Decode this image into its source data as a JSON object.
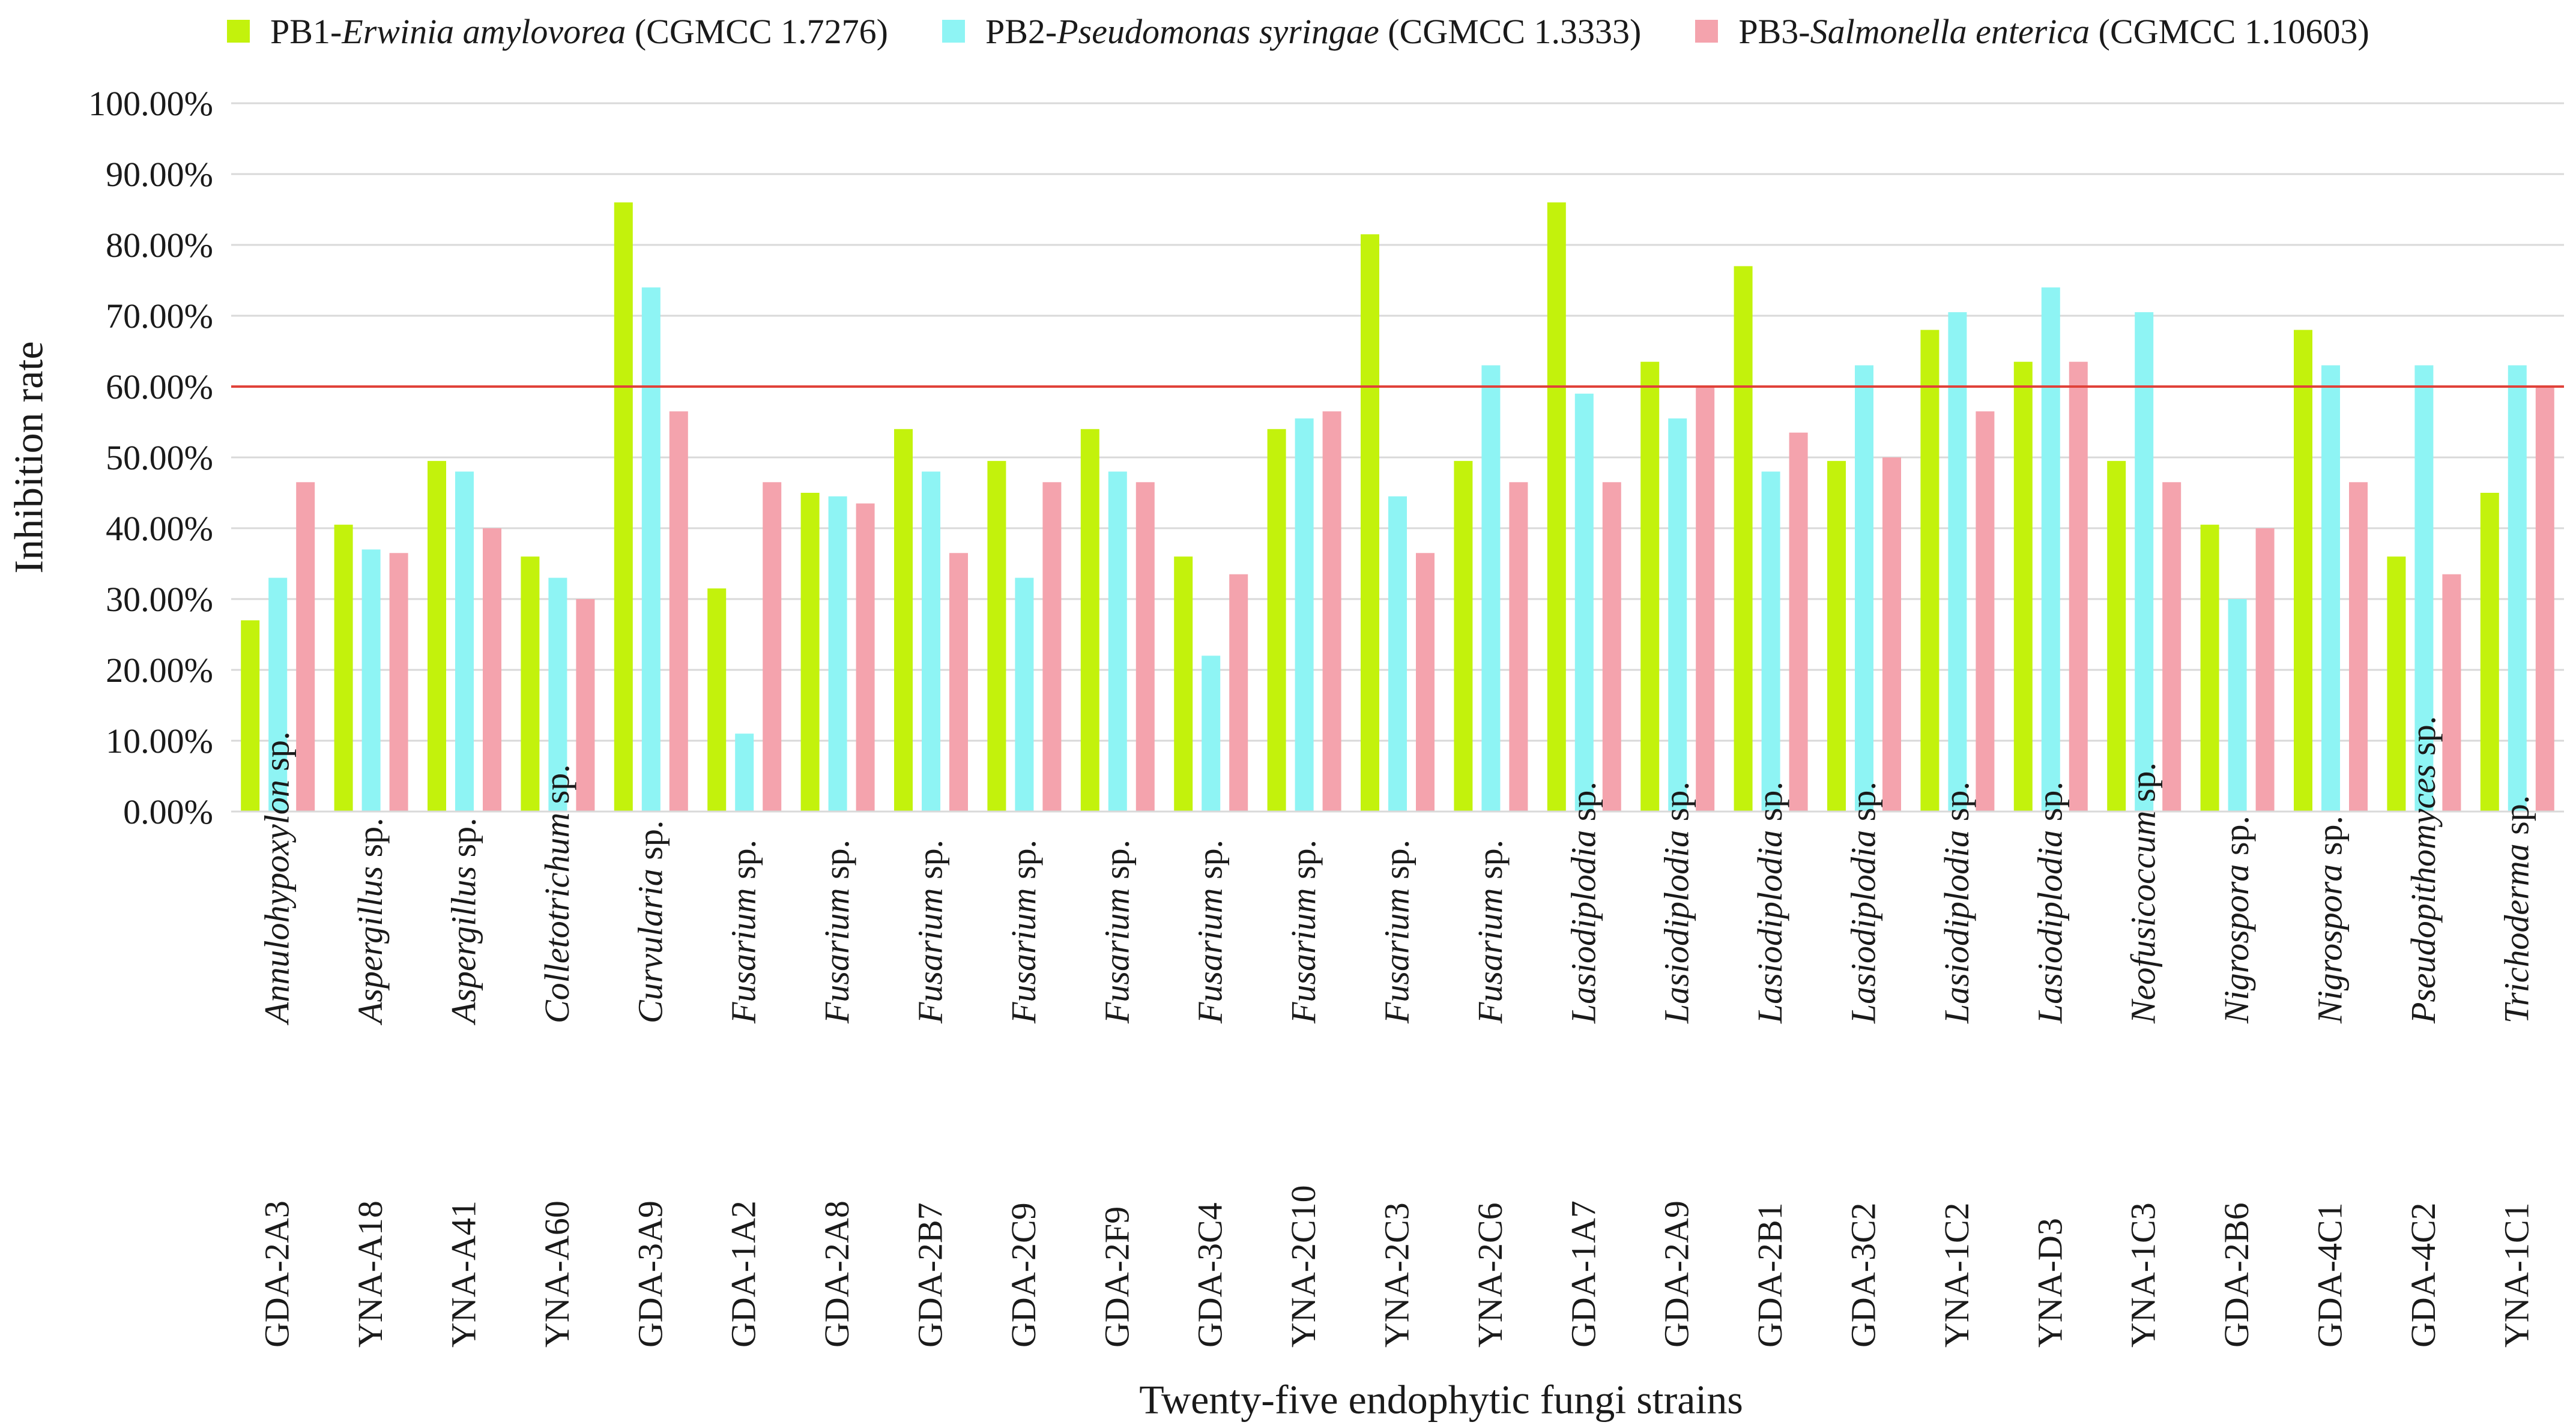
{
  "chart_data": {
    "type": "bar",
    "title": "",
    "xlabel": "Twenty-five endophytic fungi strains",
    "ylabel": "Inhibition rate",
    "ylim": [
      0,
      100
    ],
    "yticks": [
      "0.00%",
      "10.00%",
      "20.00%",
      "30.00%",
      "40.00%",
      "50.00%",
      "60.00%",
      "70.00%",
      "80.00%",
      "90.00%",
      "100.00%"
    ],
    "reference_line": {
      "value": 60,
      "color": "#e0423a"
    },
    "legend_position": "top",
    "categories": [
      {
        "code": "GDA-2A3",
        "genus": "Annulohypoxylon",
        "suffix": " sp."
      },
      {
        "code": "YNA-A18",
        "genus": "Aspergillus",
        "suffix": " sp."
      },
      {
        "code": "YNA-A41",
        "genus": "Aspergillus",
        "suffix": " sp."
      },
      {
        "code": "YNA-A60",
        "genus": "Colletotrichum",
        "suffix": " sp."
      },
      {
        "code": "GDA-3A9",
        "genus": "Curvularia",
        "suffix": " sp."
      },
      {
        "code": "GDA-1A2",
        "genus": "Fusarium",
        "suffix": " sp."
      },
      {
        "code": "GDA-2A8",
        "genus": "Fusarium",
        "suffix": " sp."
      },
      {
        "code": "GDA-2B7",
        "genus": "Fusarium",
        "suffix": " sp."
      },
      {
        "code": "GDA-2C9",
        "genus": "Fusarium",
        "suffix": " sp."
      },
      {
        "code": "GDA-2F9",
        "genus": "Fusarium",
        "suffix": " sp."
      },
      {
        "code": "GDA-3C4",
        "genus": "Fusarium",
        "suffix": " sp."
      },
      {
        "code": "YNA-2C10",
        "genus": "Fusarium",
        "suffix": " sp."
      },
      {
        "code": "YNA-2C3",
        "genus": "Fusarium",
        "suffix": " sp."
      },
      {
        "code": "YNA-2C6",
        "genus": "Fusarium",
        "suffix": " sp."
      },
      {
        "code": "GDA-1A7",
        "genus": "Lasiodiplodia",
        "suffix": " sp."
      },
      {
        "code": "GDA-2A9",
        "genus": "Lasiodiplodia",
        "suffix": " sp."
      },
      {
        "code": "GDA-2B1",
        "genus": "Lasiodiplodia",
        "suffix": " sp."
      },
      {
        "code": "GDA-3C2",
        "genus": "Lasiodiplodia",
        "suffix": " sp."
      },
      {
        "code": "YNA-1C2",
        "genus": "Lasiodiplodia",
        "suffix": " sp."
      },
      {
        "code": "YNA-D3",
        "genus": "Lasiodiplodia",
        "suffix": " sp."
      },
      {
        "code": "YNA-1C3",
        "genus": "Neofusicoccum",
        "suffix": " sp."
      },
      {
        "code": "GDA-2B6",
        "genus": "Nigrospora",
        "suffix": " sp."
      },
      {
        "code": "GDA-4C1",
        "genus": "Nigrospora",
        "suffix": " sp."
      },
      {
        "code": "GDA-4C2",
        "genus": "Pseudopithomyces",
        "suffix": " sp."
      },
      {
        "code": "YNA-1C1",
        "genus": "Trichoderma",
        "suffix": " sp."
      }
    ],
    "series": [
      {
        "prefix": "PB1-",
        "species": "Erwinia amylovorea",
        "strain": " (CGMCC 1.7276)",
        "color": "#c3f20c",
        "values": [
          27,
          40.5,
          49.5,
          36,
          86,
          31.5,
          45,
          54,
          49.5,
          54,
          36,
          54,
          81.5,
          49.5,
          86,
          63.5,
          77,
          49.5,
          68,
          63.5,
          49.5,
          40.5,
          68,
          36,
          45
        ]
      },
      {
        "prefix": "PB2-",
        "species": "Pseudomonas syringae",
        "strain": " (CGMCC 1.3333)",
        "color": "#8ef4f4",
        "values": [
          33,
          37,
          48,
          33,
          74,
          11,
          44.5,
          48,
          33,
          48,
          22,
          55.5,
          44.5,
          63,
          59,
          55.5,
          48,
          63,
          70.5,
          74,
          70.5,
          30,
          63,
          63,
          63
        ]
      },
      {
        "prefix": "PB3-",
        "species": "Salmonella enterica",
        "strain": " (CGMCC 1.10603)",
        "color": "#f4a3ad",
        "values": [
          46.5,
          36.5,
          40,
          30,
          56.5,
          46.5,
          43.5,
          36.5,
          46.5,
          46.5,
          33.5,
          56.5,
          36.5,
          46.5,
          46.5,
          60,
          53.5,
          50,
          56.5,
          63.5,
          46.5,
          40,
          46.5,
          33.5,
          60
        ]
      }
    ]
  }
}
